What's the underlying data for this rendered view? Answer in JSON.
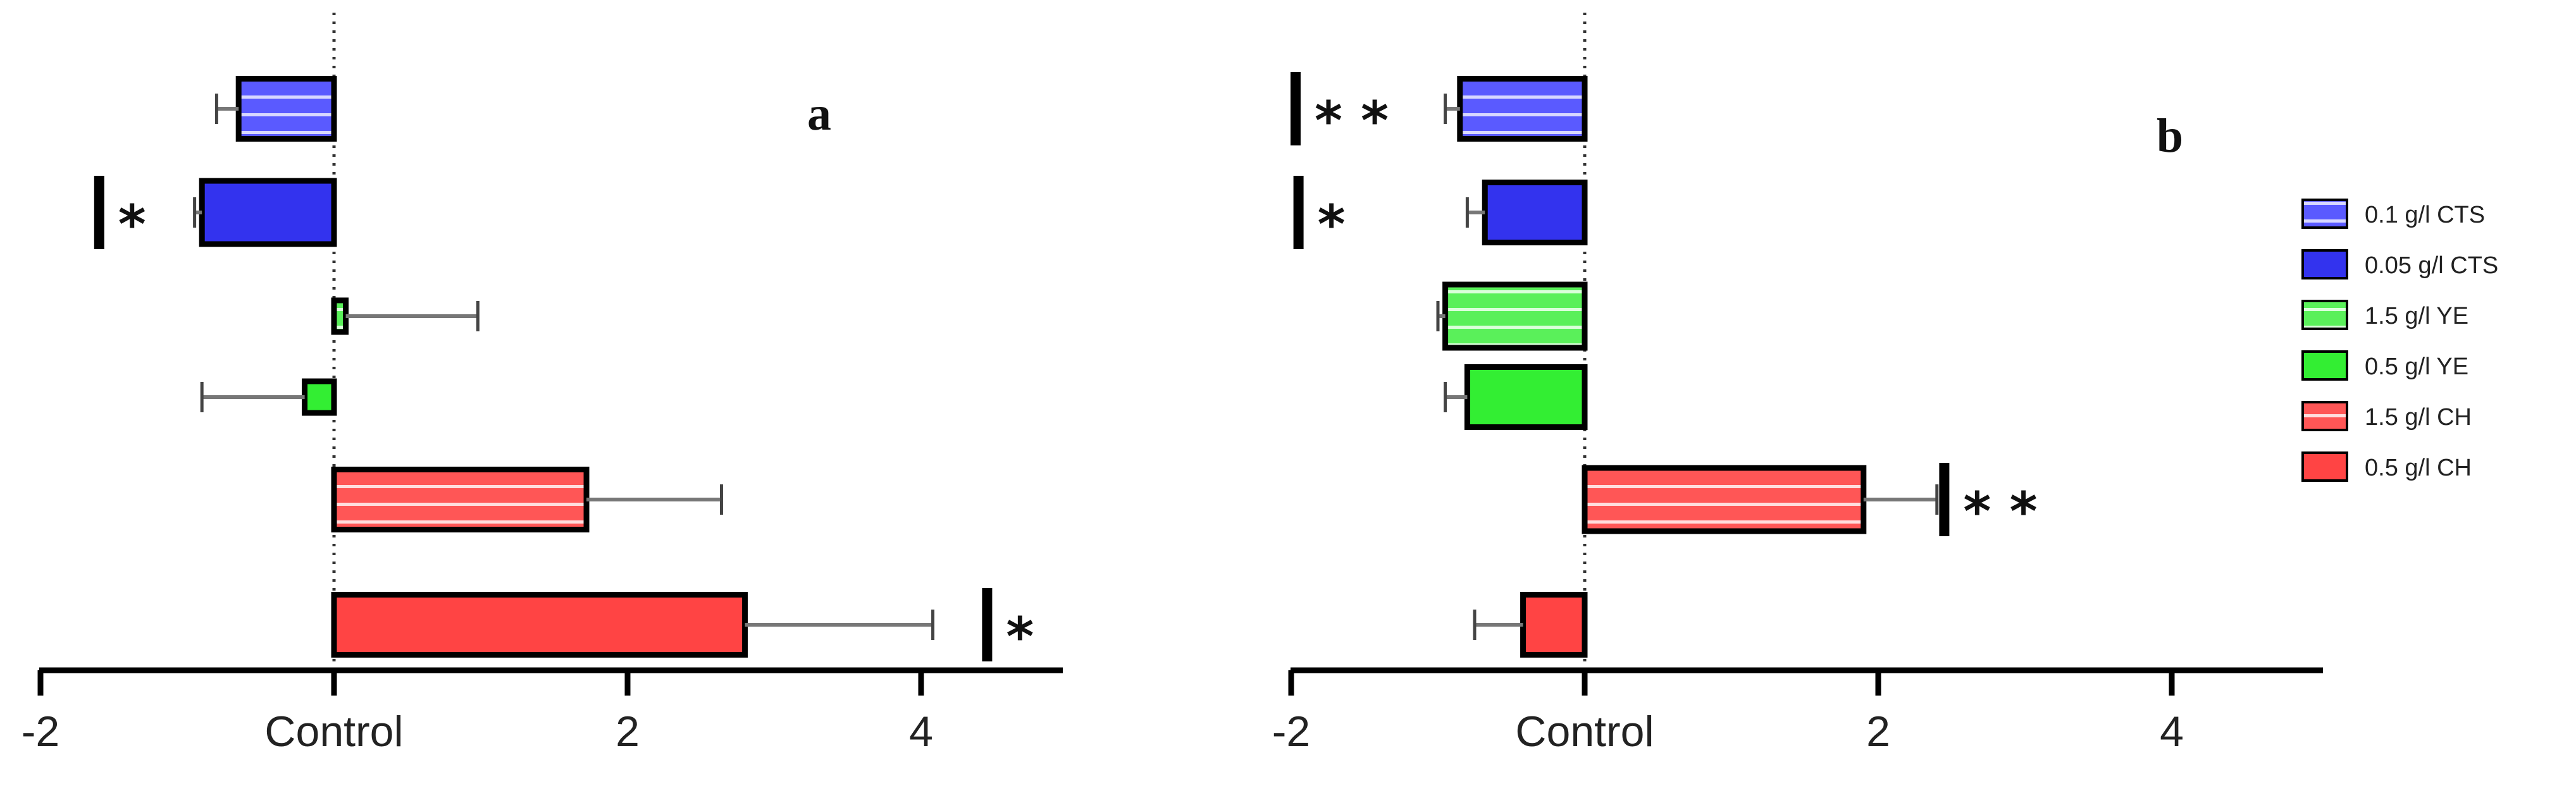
{
  "chart_data": [
    {
      "type": "bar",
      "orientation": "horizontal",
      "panel_label": "a",
      "categories": [
        "0.1 g/l CTS",
        "0.05 g/l CTS",
        "1.5 g/l YE",
        "0.5 g/l YE",
        "1.5 g/l CH",
        "0.5 g/l CH"
      ],
      "values": [
        -0.65,
        -0.9,
        0.08,
        -0.2,
        1.72,
        2.8
      ],
      "error": [
        0.15,
        0.05,
        0.9,
        0.7,
        0.92,
        1.28
      ],
      "significance": [
        {
          "category": "0.05 g/l CTS",
          "mark": "*",
          "x": -1.6
        },
        {
          "category": "0.5 g/l CH",
          "mark": "*",
          "x": 4.45
        }
      ],
      "x_tick_labels": [
        "-2",
        "Control",
        "2",
        "4"
      ],
      "xticks": [
        -2,
        0,
        2,
        4
      ],
      "xlim": [
        -2,
        5
      ],
      "xlabel": "",
      "ylabel": "",
      "title": "",
      "grid": false,
      "reference_line": 0
    },
    {
      "type": "bar",
      "orientation": "horizontal",
      "panel_label": "b",
      "categories": [
        "0.1 g/l CTS",
        "0.05 g/l CTS",
        "1.5 g/l YE",
        "0.5 g/l YE",
        "1.5 g/l CH",
        "0.5 g/l CH"
      ],
      "values": [
        -0.85,
        -0.68,
        -0.95,
        -0.8,
        1.9,
        -0.42
      ],
      "error": [
        0.1,
        0.12,
        0.05,
        0.15,
        0.5,
        0.33
      ],
      "significance": [
        {
          "category": "0.1 g/l CTS",
          "mark": "**",
          "x": -1.97
        },
        {
          "category": "0.05 g/l CTS",
          "mark": "*",
          "x": -1.95
        },
        {
          "category": "1.5 g/l CH",
          "mark": "**",
          "x": 2.45
        }
      ],
      "x_tick_labels": [
        "-2",
        "Control",
        "2",
        "4"
      ],
      "xticks": [
        -2,
        0,
        2,
        4
      ],
      "xlim": [
        -2,
        5
      ],
      "xlabel": "",
      "ylabel": "",
      "title": "",
      "grid": false,
      "reference_line": 0
    }
  ],
  "legend": {
    "placement": "right",
    "items": [
      {
        "label": "0.1 g/l CTS",
        "color": "#5555ff",
        "striped": true
      },
      {
        "label": "0.05 g/l CTS",
        "color": "#3333ee",
        "striped": false
      },
      {
        "label": "1.5 g/l YE",
        "color": "#55ee55",
        "striped": true
      },
      {
        "label": "0.5 g/l YE",
        "color": "#33ee33",
        "striped": false
      },
      {
        "label": "1.5 g/l CH",
        "color": "#ff5555",
        "striped": true
      },
      {
        "label": "0.5 g/l CH",
        "color": "#ff4444",
        "striped": false
      }
    ]
  }
}
